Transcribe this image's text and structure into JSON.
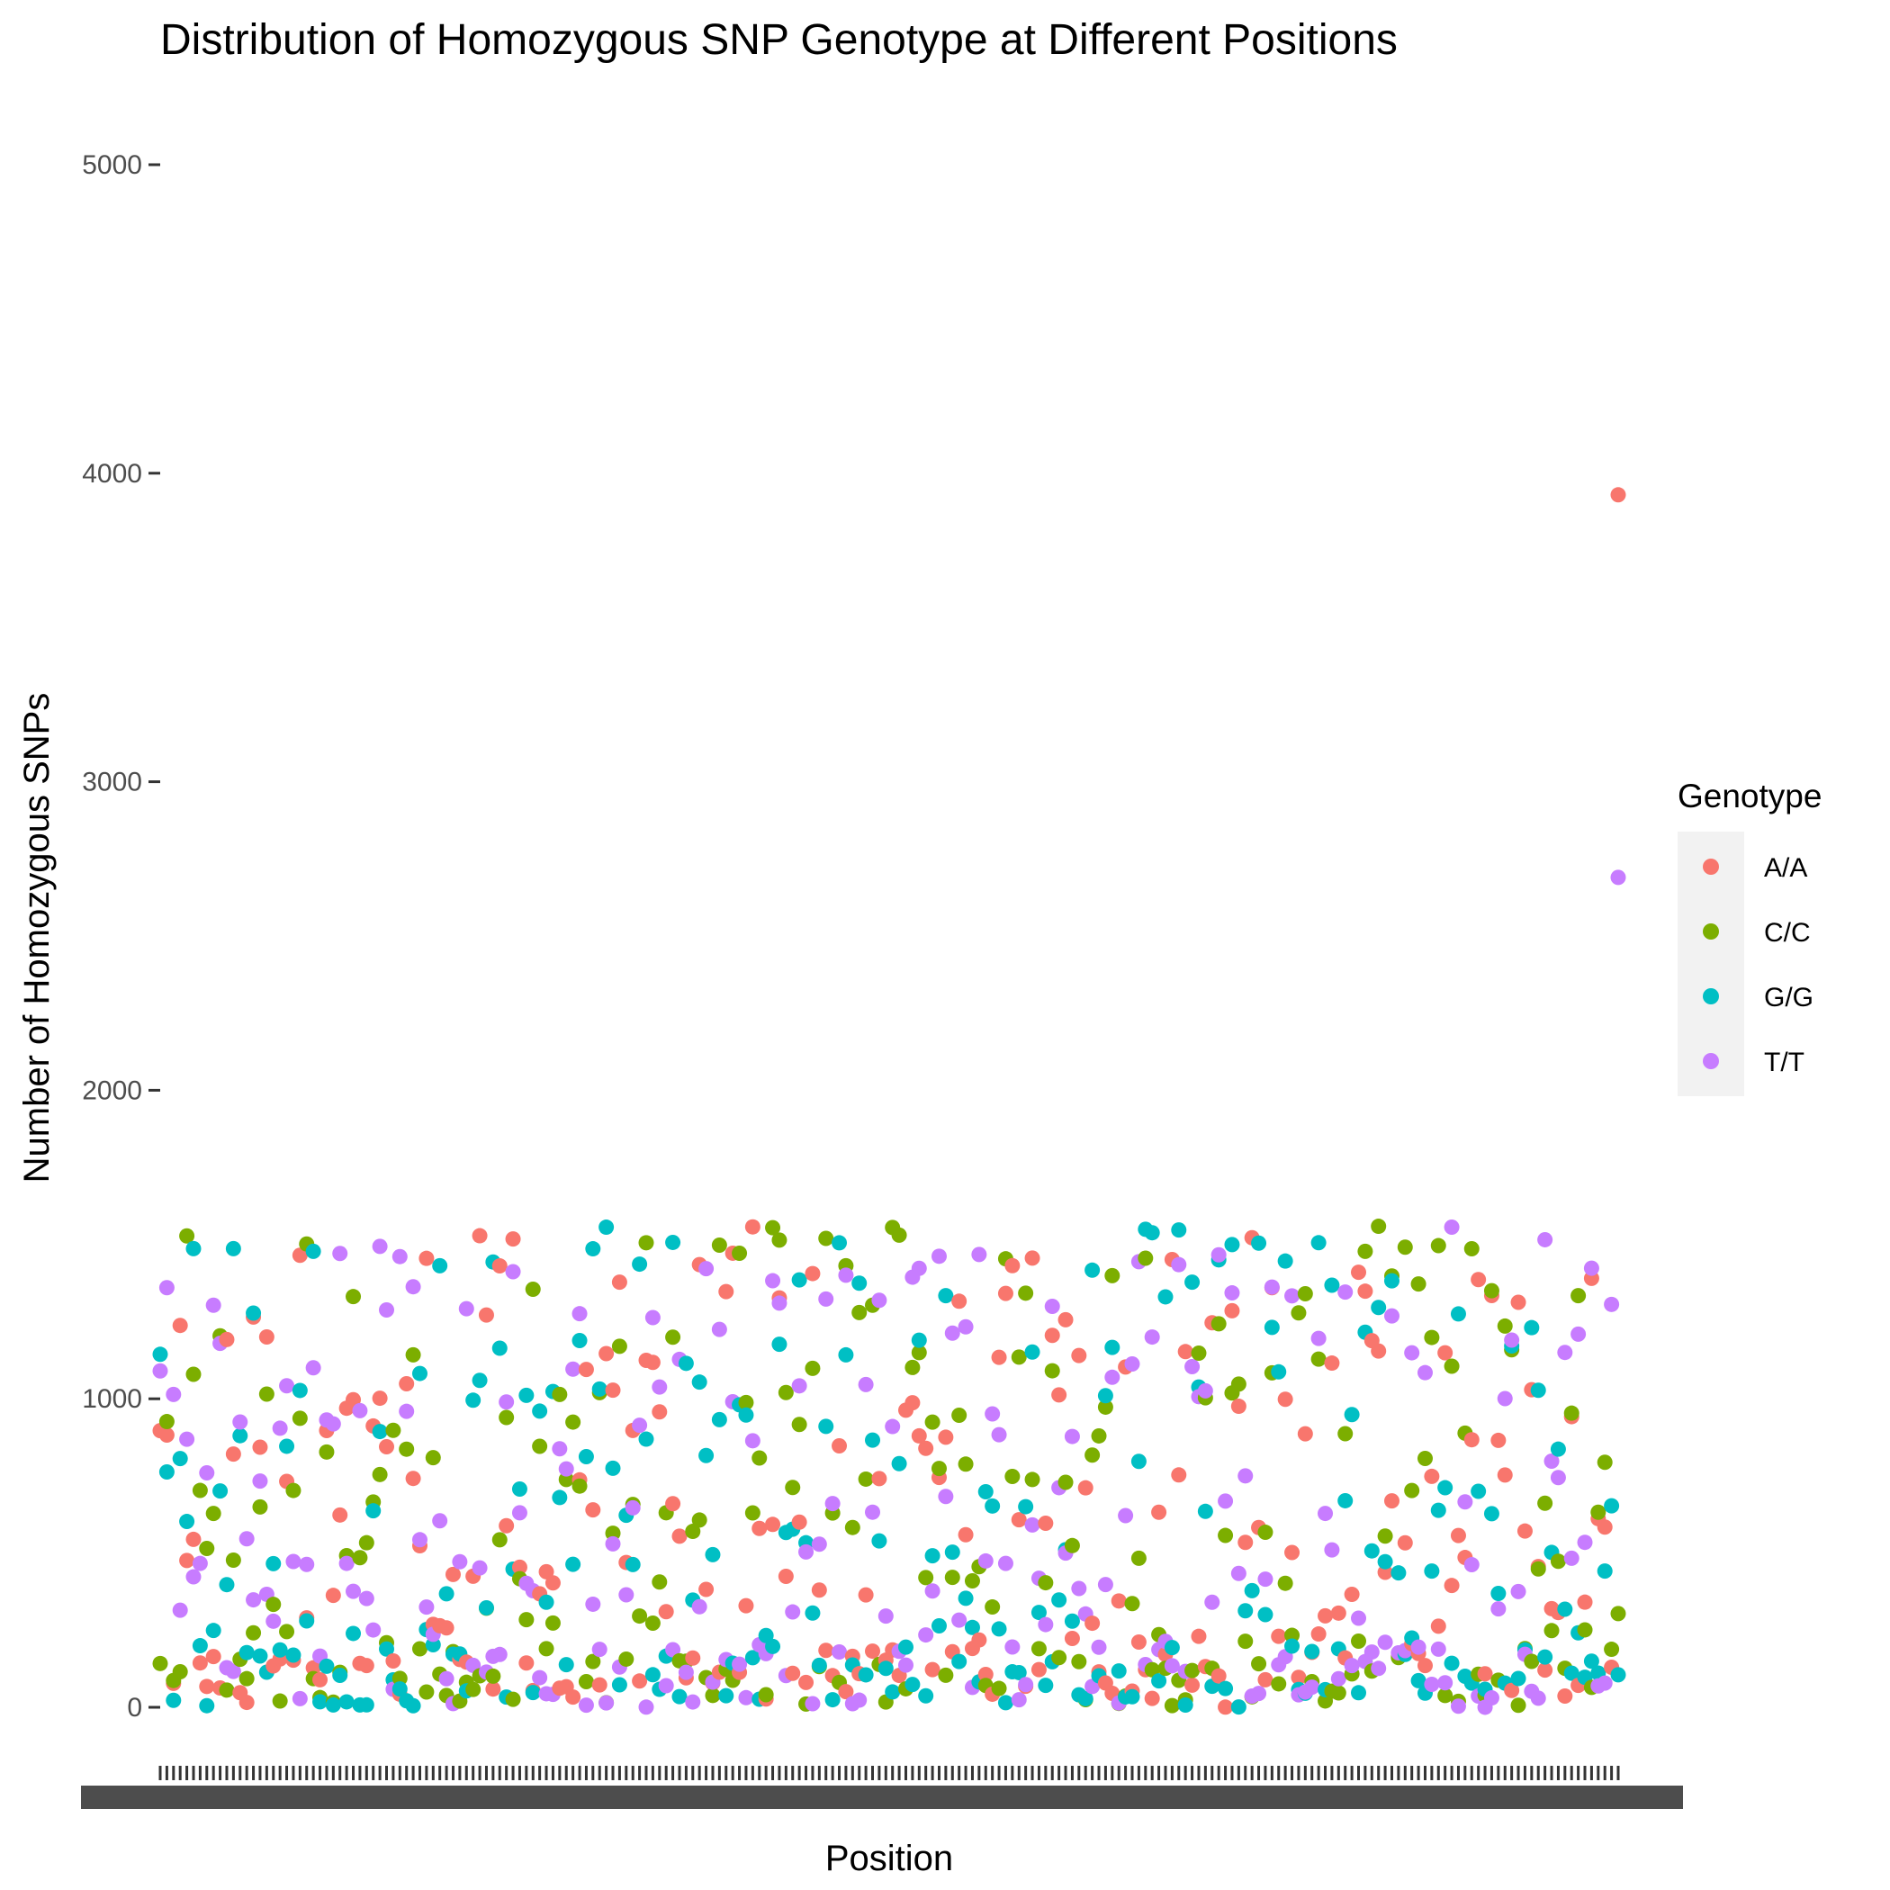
{
  "chart_data": {
    "type": "scatter",
    "title": "Distribution of Homozygous SNP Genotype at Different Positions",
    "xlabel": "Position",
    "ylabel": "Number of Homozygous SNPs",
    "ylim": [
      -200,
      5200
    ],
    "yticks": [
      0,
      1000,
      2000,
      3000,
      4000,
      5000
    ],
    "x_tick_labels_overlapping": true,
    "grid": false,
    "legend_position": "right",
    "legend_title": "Genotype",
    "series": [
      {
        "name": "A/A",
        "color": "#F8766D"
      },
      {
        "name": "C/C",
        "color": "#7CAE00"
      },
      {
        "name": "G/G",
        "color": "#00BFC4"
      },
      {
        "name": "T/T",
        "color": "#C77CFF"
      }
    ],
    "n_positions": 220,
    "value_range_bulk": [
      0,
      1560
    ],
    "outliers": [
      {
        "series": "A/A",
        "position_index": 219,
        "y": 3930
      },
      {
        "series": "T/T",
        "position_index": 219,
        "y": 2690
      }
    ]
  }
}
